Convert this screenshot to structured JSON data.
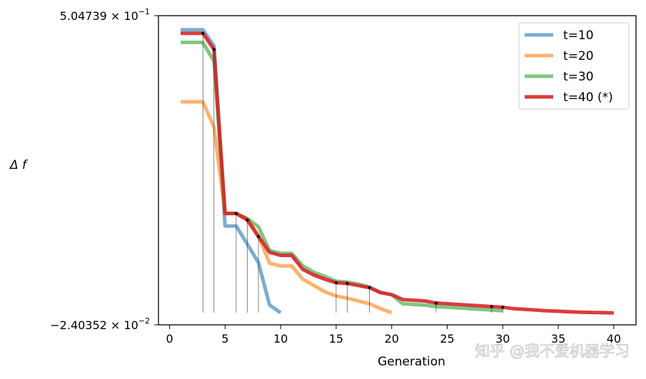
{
  "chart_data": {
    "type": "line",
    "title": "",
    "xlabel": "Generation",
    "ylabel": "Δ f",
    "xlim": [
      -1,
      42
    ],
    "ylim": [
      -0.0240352,
      0.504739
    ],
    "x_ticks": [
      0,
      5,
      10,
      15,
      20,
      25,
      30,
      35,
      40
    ],
    "x_tick_labels": [
      "0",
      "5",
      "10",
      "15",
      "20",
      "25",
      "30",
      "35",
      "40"
    ],
    "y_tick_labels": [
      {
        "mantissa": "5.04739 × 10",
        "exponent": "−1"
      },
      {
        "mantissa": "−2.40352 × 10",
        "exponent": "−2"
      }
    ],
    "legend_position": "top-right",
    "series": [
      {
        "name": "t=10",
        "color": "#1f77b4",
        "x": [
          1,
          2,
          3,
          4,
          5,
          6,
          7,
          8,
          9,
          10
        ],
        "y": [
          0.4807,
          0.4807,
          0.4807,
          0.4528,
          0.1451,
          0.1451,
          0.1139,
          0.0827,
          0.0099,
          -0.0032
        ]
      },
      {
        "name": "t=20",
        "color": "#ff7f0e",
        "x": [
          1,
          2,
          3,
          4,
          5,
          6,
          7,
          8,
          9,
          10,
          11,
          12,
          13,
          14,
          15,
          16,
          17,
          18,
          19,
          20
        ],
        "y": [
          0.3574,
          0.3574,
          0.3574,
          0.314,
          0.1665,
          0.1665,
          0.1576,
          0.1283,
          0.0815,
          0.0767,
          0.0767,
          0.054,
          0.0432,
          0.0324,
          0.0252,
          0.0216,
          0.0168,
          0.012,
          0.0036,
          -0.0032
        ]
      },
      {
        "name": "t=30",
        "color": "#2ca02c",
        "x": [
          1,
          2,
          3,
          4,
          5,
          6,
          7,
          8,
          9,
          10,
          11,
          12,
          13,
          14,
          15,
          16,
          17,
          18,
          19,
          20,
          21,
          22,
          23,
          24,
          25,
          26,
          27,
          28,
          29,
          30
        ],
        "y": [
          0.4591,
          0.4591,
          0.4591,
          0.4267,
          0.1665,
          0.1665,
          0.1576,
          0.1439,
          0.1031,
          0.0983,
          0.0983,
          0.0767,
          0.0659,
          0.0587,
          0.0504,
          0.0492,
          0.0456,
          0.0408,
          0.0312,
          0.0276,
          0.012,
          0.0108,
          0.0096,
          0.0072,
          0.006,
          0.0048,
          0.0036,
          0.0024,
          0.0012,
          0.0
        ]
      },
      {
        "name": "t=40 (*)",
        "color": "#d62728",
        "x": [
          1,
          2,
          3,
          4,
          5,
          6,
          7,
          8,
          9,
          10,
          11,
          12,
          13,
          14,
          15,
          16,
          17,
          18,
          19,
          20,
          21,
          22,
          23,
          24,
          25,
          26,
          27,
          28,
          29,
          30,
          31,
          32,
          33,
          34,
          35,
          36,
          37,
          38,
          39,
          40
        ],
        "y": [
          0.4747,
          0.4747,
          0.4747,
          0.4471,
          0.1665,
          0.1665,
          0.1552,
          0.1271,
          0.1001,
          0.0947,
          0.0947,
          0.0707,
          0.0611,
          0.0539,
          0.048,
          0.0468,
          0.0432,
          0.0396,
          0.0312,
          0.0276,
          0.0192,
          0.018,
          0.0168,
          0.0132,
          0.012,
          0.0108,
          0.0096,
          0.0084,
          0.0072,
          0.006,
          0.0036,
          0.0024,
          0.0012,
          0.0,
          -0.0008,
          -0.0016,
          -0.0024,
          -0.0028,
          -0.0032,
          -0.0036
        ]
      }
    ],
    "markers": {
      "series": "t=40 (*)",
      "generations": [
        3,
        4,
        6,
        7,
        8,
        15,
        16,
        18,
        24,
        29,
        30
      ]
    }
  },
  "watermark": "知乎 @我不爱机器学习"
}
